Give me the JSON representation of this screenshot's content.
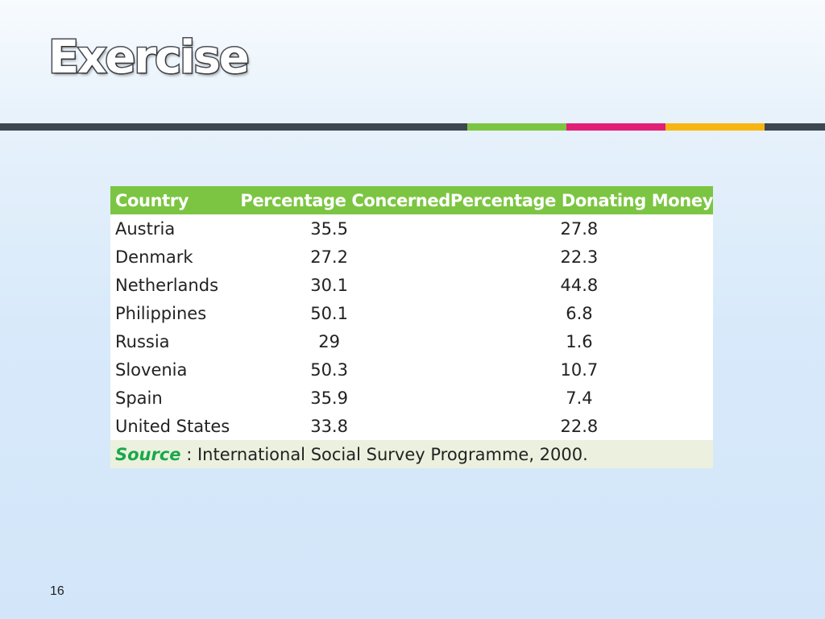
{
  "slide": {
    "title": "Exercise",
    "page_number": "16"
  },
  "colors": {
    "header_green": "#7cc542",
    "source_green": "#1aa84a",
    "rule_dark": "#3e4652",
    "rule_pink": "#e21f76",
    "rule_gold": "#f7b514",
    "footer_bg": "#ebf1de"
  },
  "table": {
    "headers": [
      "Country",
      "Percentage Concerned",
      "Percentage Donating Money"
    ],
    "rows": [
      [
        "Austria",
        "35.5",
        "27.8"
      ],
      [
        "Denmark",
        "27.2",
        "22.3"
      ],
      [
        "Netherlands",
        "30.1",
        "44.8"
      ],
      [
        "Philippines",
        "50.1",
        "6.8"
      ],
      [
        "Russia",
        "29",
        "1.6"
      ],
      [
        "Slovenia",
        "50.3",
        "10.7"
      ],
      [
        "Spain",
        "35.9",
        "7.4"
      ],
      [
        "United States",
        "33.8",
        "22.8"
      ]
    ],
    "source_label": "Source",
    "source_text": " : International Social Survey Programme, 2000."
  }
}
